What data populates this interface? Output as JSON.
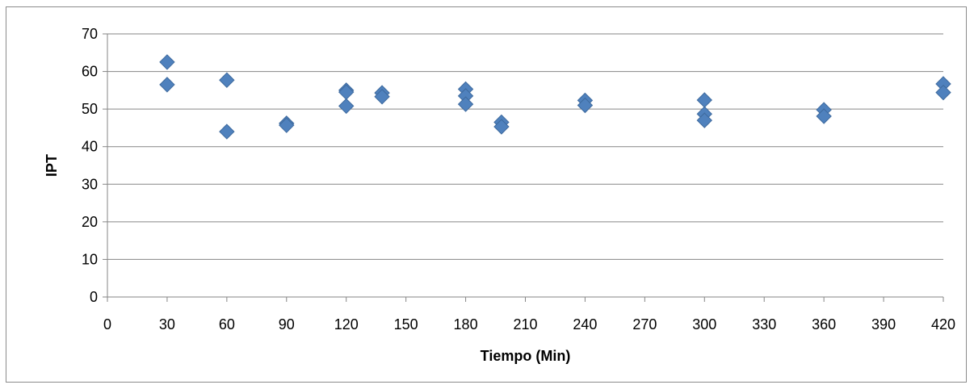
{
  "chart_data": {
    "type": "scatter",
    "title": "",
    "xlabel": "Tiempo (Min)",
    "ylabel": "IPT",
    "xlim": [
      0,
      420
    ],
    "ylim": [
      0,
      70
    ],
    "x_ticks": [
      0,
      30,
      60,
      90,
      120,
      150,
      180,
      210,
      240,
      270,
      300,
      330,
      360,
      390,
      420
    ],
    "y_ticks": [
      0,
      10,
      20,
      30,
      40,
      50,
      60,
      70
    ],
    "grid": "horizontal",
    "legend": "none",
    "marker": "diamond",
    "marker_color": "#4f81bd",
    "series": [
      {
        "points": [
          {
            "x": 30,
            "y": 62.5
          },
          {
            "x": 30,
            "y": 56.5
          },
          {
            "x": 60,
            "y": 57.7
          },
          {
            "x": 60,
            "y": 44.0
          },
          {
            "x": 90,
            "y": 46.2
          },
          {
            "x": 90,
            "y": 45.7
          },
          {
            "x": 120,
            "y": 55.0
          },
          {
            "x": 120,
            "y": 54.5
          },
          {
            "x": 120,
            "y": 50.8
          },
          {
            "x": 138,
            "y": 54.3
          },
          {
            "x": 138,
            "y": 53.3
          },
          {
            "x": 180,
            "y": 55.3
          },
          {
            "x": 180,
            "y": 53.5
          },
          {
            "x": 180,
            "y": 51.3
          },
          {
            "x": 198,
            "y": 46.5
          },
          {
            "x": 198,
            "y": 45.3
          },
          {
            "x": 240,
            "y": 52.3
          },
          {
            "x": 240,
            "y": 51.0
          },
          {
            "x": 300,
            "y": 52.4
          },
          {
            "x": 300,
            "y": 48.7
          },
          {
            "x": 300,
            "y": 47.0
          },
          {
            "x": 360,
            "y": 49.8
          },
          {
            "x": 360,
            "y": 48.1
          },
          {
            "x": 420,
            "y": 56.7
          },
          {
            "x": 420,
            "y": 54.4
          }
        ]
      }
    ]
  }
}
